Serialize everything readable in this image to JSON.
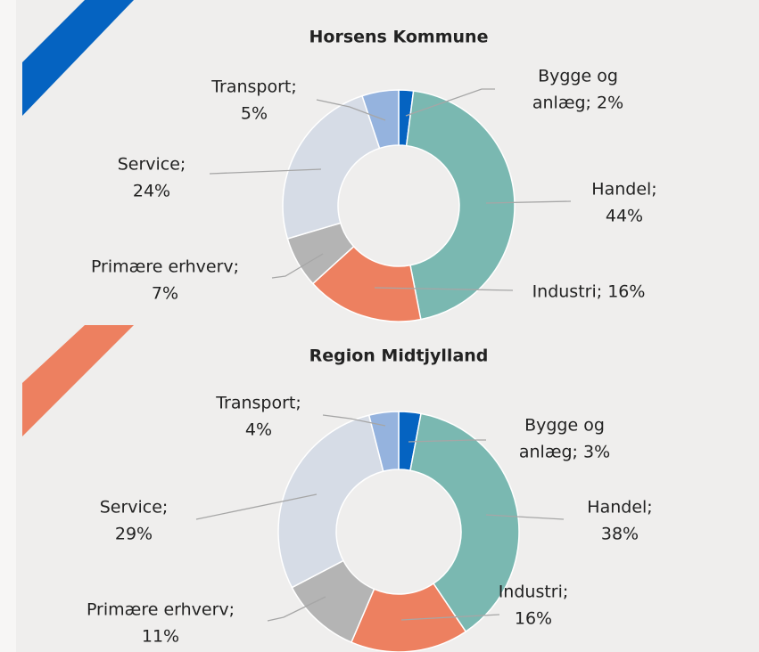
{
  "chart_data": [
    {
      "type": "donut",
      "title": "Horsens Kommune",
      "categories": [
        "Bygge og anlæg",
        "Handel",
        "Industri",
        "Primære erhverv",
        "Service",
        "Transport"
      ],
      "values": [
        2,
        44,
        16,
        7,
        24,
        5
      ],
      "value_labels": [
        [
          "Bygge og",
          "anlæg; 2%"
        ],
        [
          "Handel;",
          "44%"
        ],
        [
          "Industri; 16%"
        ],
        [
          "Primære erhverv;",
          "7%"
        ],
        [
          "Service;",
          "24%"
        ],
        [
          "Transport;",
          "5%"
        ]
      ],
      "colors": [
        "#0563c1",
        "#7ab8b1",
        "#ed8060",
        "#b4b4b4",
        "#d6dce6",
        "#95b3de"
      ]
    },
    {
      "type": "donut",
      "title": "Region Midtjylland",
      "categories": [
        "Bygge og anlæg",
        "Handel",
        "Industri",
        "Primære erhverv",
        "Service",
        "Transport"
      ],
      "values": [
        3,
        38,
        16,
        11,
        29,
        4
      ],
      "value_labels": [
        [
          "Bygge og",
          "anlæg; 3%"
        ],
        [
          "Handel;",
          "38%"
        ],
        [
          "Industri;",
          "16%"
        ],
        [
          "Primære erhverv;",
          "11%"
        ],
        [
          "Service;",
          "29%"
        ],
        [
          "Transport;",
          "4%"
        ]
      ],
      "colors": [
        "#0563c1",
        "#7ab8b1",
        "#ed8060",
        "#b4b4b4",
        "#d6dce6",
        "#95b3de"
      ]
    }
  ]
}
